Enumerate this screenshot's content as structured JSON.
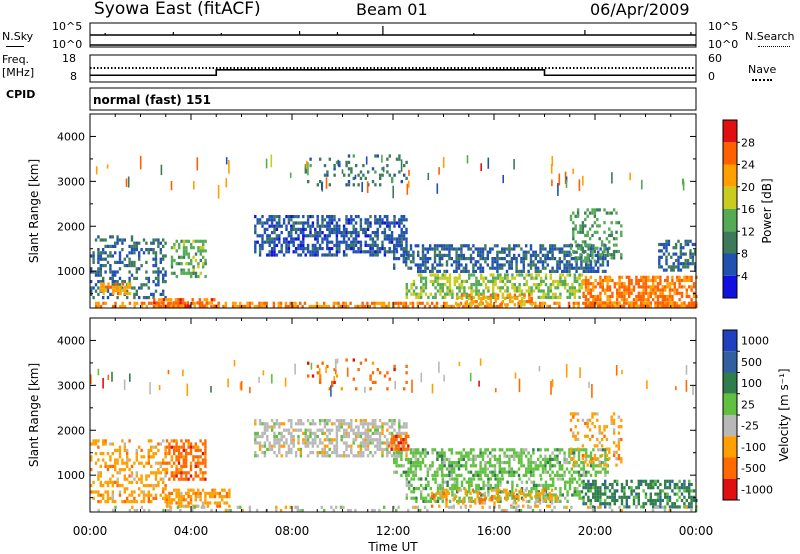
{
  "header": {
    "station": "Syowa East (fitACF)",
    "beam": "Beam 01",
    "date": "06/Apr/2009"
  },
  "strip": {
    "nsky_label": "N.Sky",
    "nsearch_label": "N.Search",
    "freq_label_1": "Freq.",
    "freq_label_2": "[MHz]",
    "nave_label": "Nave",
    "cpid_label": "CPID",
    "noise_tick_top": "10^5",
    "noise_tick_bottom": "10^0",
    "freq_ticks": [
      "18",
      "8"
    ],
    "nave_ticks": [
      "60",
      "0"
    ],
    "cpid_text": "normal (fast) 151"
  },
  "colors": {
    "power_scale": [
      "#1010e0",
      "#2050b0",
      "#3c7a5a",
      "#55aa55",
      "#c8cc20",
      "#ffa000",
      "#ff6000",
      "#e01010"
    ],
    "velocity_scale": [
      "#2040c0",
      "#3060a0",
      "#2e7d4a",
      "#60c040",
      "#b8b8b8",
      "#ffa000",
      "#ff6a00",
      "#e01010"
    ]
  },
  "chart_data": [
    {
      "type": "heatmap",
      "panel": "power",
      "xlabel": "",
      "ylabel": "Slant Range [km]",
      "x_ticks": [
        "00:00",
        "04:00",
        "08:00",
        "12:00",
        "16:00",
        "20:00",
        "00:00"
      ],
      "xlim_hours": [
        0,
        24
      ],
      "ylim_km": [
        180,
        4500
      ],
      "y_ticks": [
        1000,
        2000,
        3000,
        4000
      ],
      "colorbar_label": "Power [dB]",
      "colorbar_ticks": [
        "4",
        "8",
        "12",
        "16",
        "20",
        "24",
        "28"
      ],
      "colorbar_range": [
        0,
        32
      ],
      "features": [
        {
          "t0": 0.2,
          "t1": 24.0,
          "r0": 200,
          "r1": 320,
          "level": 24,
          "density": 0.55
        },
        {
          "t0": 0.0,
          "t1": 3.0,
          "r0": 400,
          "r1": 1800,
          "level": 8,
          "density": 0.35
        },
        {
          "t0": 0.4,
          "t1": 1.6,
          "r0": 500,
          "r1": 750,
          "level": 22,
          "density": 0.7
        },
        {
          "t0": 3.2,
          "t1": 4.6,
          "r0": 900,
          "r1": 1700,
          "level": 14,
          "density": 0.5
        },
        {
          "t0": 2.5,
          "t1": 5.0,
          "r0": 250,
          "r1": 400,
          "level": 26,
          "density": 0.6
        },
        {
          "t0": 6.5,
          "t1": 12.5,
          "r0": 1350,
          "r1": 2250,
          "level": 6,
          "density": 0.6
        },
        {
          "t0": 12.0,
          "t1": 20.5,
          "r0": 1000,
          "r1": 1600,
          "level": 7,
          "density": 0.55
        },
        {
          "t0": 12.5,
          "t1": 19.5,
          "r0": 400,
          "r1": 950,
          "level": 16,
          "density": 0.55
        },
        {
          "t0": 14.5,
          "t1": 17.5,
          "r0": 250,
          "r1": 500,
          "level": 22,
          "density": 0.55
        },
        {
          "t0": 19.5,
          "t1": 24.0,
          "r0": 250,
          "r1": 900,
          "level": 25,
          "density": 0.65
        },
        {
          "t0": 19.0,
          "t1": 21.0,
          "r0": 1200,
          "r1": 2400,
          "level": 13,
          "density": 0.3
        },
        {
          "t0": 8.5,
          "t1": 12.5,
          "r0": 2900,
          "r1": 3600,
          "level": 10,
          "density": 0.15
        },
        {
          "t0": 22.5,
          "t1": 24.0,
          "r0": 1000,
          "r1": 1700,
          "level": 8,
          "density": 0.5
        }
      ]
    },
    {
      "type": "heatmap",
      "panel": "velocity",
      "xlabel": "Time UT",
      "ylabel": "Slant Range [km]",
      "x_ticks": [
        "00:00",
        "04:00",
        "08:00",
        "12:00",
        "16:00",
        "20:00",
        "00:00"
      ],
      "xlim_hours": [
        0,
        24
      ],
      "ylim_km": [
        180,
        4500
      ],
      "y_ticks": [
        1000,
        2000,
        3000,
        4000
      ],
      "colorbar_label": "Velocity [m s⁻¹]",
      "colorbar_ticks": [
        "1000",
        "500",
        "100",
        "25",
        "-25",
        "-100",
        "-500",
        "-1000"
      ],
      "features": [
        {
          "t0": 0.0,
          "t1": 3.0,
          "r0": 400,
          "r1": 1800,
          "class": 5,
          "density": 0.4
        },
        {
          "t0": 3.0,
          "t1": 4.6,
          "r0": 900,
          "r1": 1800,
          "class": 6,
          "density": 0.55
        },
        {
          "t0": 3.0,
          "t1": 5.5,
          "r0": 300,
          "r1": 700,
          "class": 5,
          "density": 0.6
        },
        {
          "t0": 6.5,
          "t1": 12.5,
          "r0": 1400,
          "r1": 2250,
          "class": 4,
          "density": 0.55
        },
        {
          "t0": 12.0,
          "t1": 20.5,
          "r0": 1000,
          "r1": 1600,
          "class": 3,
          "density": 0.55
        },
        {
          "t0": 12.5,
          "t1": 19.5,
          "r0": 400,
          "r1": 950,
          "class": 3,
          "density": 0.5
        },
        {
          "t0": 13.5,
          "t1": 18.5,
          "r0": 300,
          "r1": 700,
          "class": 5,
          "density": 0.35
        },
        {
          "t0": 19.5,
          "t1": 24.0,
          "r0": 300,
          "r1": 900,
          "class": 2,
          "density": 0.55
        },
        {
          "t0": 19.0,
          "t1": 21.0,
          "r0": 1200,
          "r1": 2400,
          "class": 5,
          "density": 0.25
        },
        {
          "t0": 8.5,
          "t1": 12.5,
          "r0": 2900,
          "r1": 3600,
          "class": 6,
          "density": 0.12
        },
        {
          "t0": 11.8,
          "t1": 12.6,
          "r0": 1600,
          "r1": 1900,
          "class": 6,
          "density": 0.6
        },
        {
          "t0": 0.2,
          "t1": 24.0,
          "r0": 200,
          "r1": 320,
          "class": 4,
          "density": 0.25
        }
      ]
    }
  ],
  "strip_data": {
    "freq_mhz": [
      {
        "t0": 0,
        "t1": 5.0,
        "v": 10.5
      },
      {
        "t0": 5.0,
        "t1": 18.0,
        "v": 12.5
      },
      {
        "t0": 18.0,
        "t1": 24,
        "v": 10.5
      }
    ],
    "nave_level": 52
  }
}
